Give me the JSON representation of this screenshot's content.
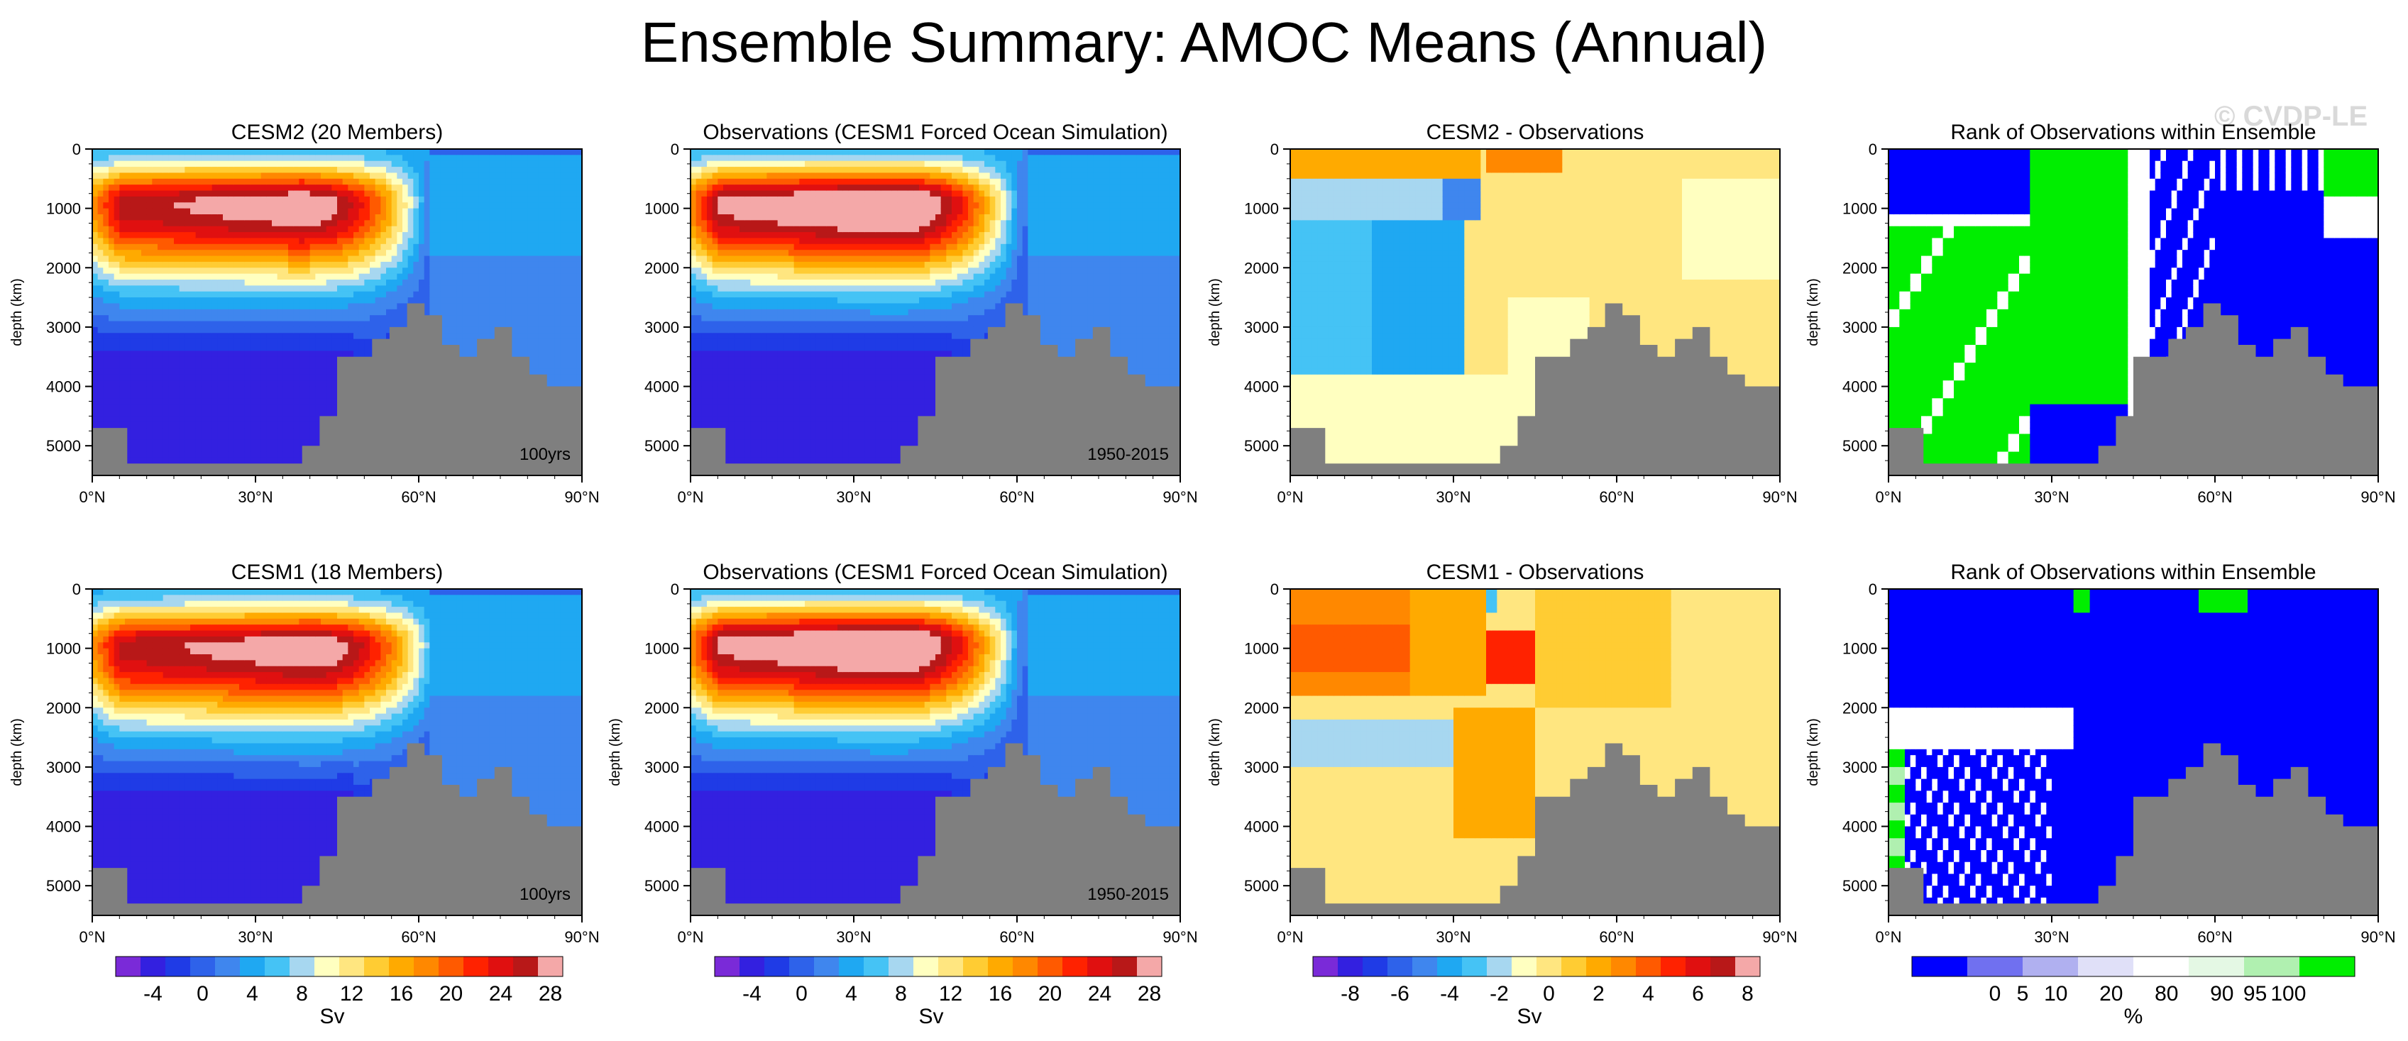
{
  "title": "Ensemble Summary: AMOC Means (Annual)",
  "watermark": "© CVDP-LE",
  "colors": {
    "bathymetry": "#7f7f7f",
    "amoc_scale": [
      "#7a2ad8",
      "#3320e0",
      "#1f3be6",
      "#2e62ea",
      "#3f86ee",
      "#1fa8f2",
      "#45c3f5",
      "#a7d7f0",
      "#ffffc0",
      "#ffe680",
      "#ffcc33",
      "#ffaa00",
      "#ff8800",
      "#ff5a00",
      "#ff2200",
      "#e01010",
      "#b81818",
      "#f4a8a8"
    ],
    "diff_scale": [
      "#7a2ad8",
      "#3320e0",
      "#1f3be6",
      "#2e62ea",
      "#3f86ee",
      "#1fa8f2",
      "#45c3f5",
      "#a7d7f0",
      "#ffffc0",
      "#ffe680",
      "#ffcc33",
      "#ffaa00",
      "#ff8800",
      "#ff5a00",
      "#ff2200",
      "#e01010",
      "#b81818",
      "#f4a8a8"
    ],
    "rank_scale": [
      "#0000ff",
      "#7070f0",
      "#b0b0f0",
      "#e0e0f8",
      "#ffffff",
      "#e4f8e4",
      "#b0f0b0",
      "#00ee00"
    ]
  },
  "chart_data": [
    {
      "type": "heatmap",
      "title": "CESM2 (20 Members)",
      "ylabel": "depth (km)",
      "xlabel": "",
      "x_ticks": [
        "0°N",
        "30°N",
        "60°N",
        "90°N"
      ],
      "y_ticks": [
        "0",
        "1000",
        "2000",
        "3000",
        "4000",
        "5000"
      ],
      "ylim": [
        0,
        5500
      ],
      "xlim": [
        0,
        90
      ],
      "annotation": "100yrs",
      "field": "amoc",
      "peak": {
        "lat": 38,
        "depth": 950,
        "value": 28
      },
      "bathymetry_depths": [
        4700,
        4700,
        5300,
        5300,
        5300,
        5300,
        5300,
        5300,
        5300,
        5300,
        5300,
        5300,
        5000,
        4500,
        3500,
        3500,
        3200,
        3000,
        2600,
        2800,
        3300,
        3500,
        3200,
        3000,
        3500,
        3800,
        4000,
        4000
      ]
    },
    {
      "type": "heatmap",
      "title": "Observations (CESM1 Forced Ocean Simulation)",
      "ylabel": "",
      "xlabel": "",
      "x_ticks": [
        "0°N",
        "30°N",
        "60°N",
        "90°N"
      ],
      "y_ticks": [
        "0",
        "1000",
        "2000",
        "3000",
        "4000",
        "5000"
      ],
      "ylim": [
        0,
        5500
      ],
      "xlim": [
        0,
        90
      ],
      "annotation": "1950-2015",
      "field": "amoc",
      "peak": {
        "lat": 37,
        "depth": 950,
        "value": 30
      },
      "bathymetry_depths": [
        4700,
        4700,
        5300,
        5300,
        5300,
        5300,
        5300,
        5300,
        5300,
        5300,
        5300,
        5300,
        5000,
        4500,
        3500,
        3500,
        3200,
        3000,
        2600,
        2800,
        3300,
        3500,
        3200,
        3000,
        3500,
        3800,
        4000,
        4000
      ]
    },
    {
      "type": "heatmap",
      "title": "CESM2 - Observations",
      "ylabel": "depth (km)",
      "xlabel": "",
      "x_ticks": [
        "0°N",
        "30°N",
        "60°N",
        "90°N"
      ],
      "y_ticks": [
        "0",
        "1000",
        "2000",
        "3000",
        "4000",
        "5000"
      ],
      "ylim": [
        0,
        5500
      ],
      "xlim": [
        0,
        90
      ],
      "annotation": "",
      "field": "diff_a",
      "bathymetry_depths": [
        4700,
        4700,
        5300,
        5300,
        5300,
        5300,
        5300,
        5300,
        5300,
        5300,
        5300,
        5300,
        5000,
        4500,
        3500,
        3500,
        3200,
        3000,
        2600,
        2800,
        3300,
        3500,
        3200,
        3000,
        3500,
        3800,
        4000,
        4000
      ]
    },
    {
      "type": "heatmap",
      "title": "Rank of Observations within Ensemble",
      "ylabel": "depth (km)",
      "xlabel": "",
      "x_ticks": [
        "0°N",
        "30°N",
        "60°N",
        "90°N"
      ],
      "y_ticks": [
        "0",
        "1000",
        "2000",
        "3000",
        "4000",
        "5000"
      ],
      "ylim": [
        0,
        5500
      ],
      "xlim": [
        0,
        90
      ],
      "annotation": "",
      "field": "rank_a",
      "bathymetry_depths": [
        4700,
        4700,
        5300,
        5300,
        5300,
        5300,
        5300,
        5300,
        5300,
        5300,
        5300,
        5300,
        5000,
        4500,
        3500,
        3500,
        3200,
        3000,
        2600,
        2800,
        3300,
        3500,
        3200,
        3000,
        3500,
        3800,
        4000,
        4000
      ]
    },
    {
      "type": "heatmap",
      "title": "CESM1 (18 Members)",
      "ylabel": "depth (km)",
      "xlabel": "",
      "x_ticks": [
        "0°N",
        "30°N",
        "60°N",
        "90°N"
      ],
      "y_ticks": [
        "0",
        "1000",
        "2000",
        "3000",
        "4000",
        "5000"
      ],
      "ylim": [
        0,
        5500
      ],
      "xlim": [
        0,
        90
      ],
      "annotation": "100yrs",
      "field": "amoc",
      "peak": {
        "lat": 40,
        "depth": 1000,
        "value": 28
      },
      "bathymetry_depths": [
        4700,
        4700,
        5300,
        5300,
        5300,
        5300,
        5300,
        5300,
        5300,
        5300,
        5300,
        5300,
        5000,
        4500,
        3500,
        3500,
        3200,
        3000,
        2600,
        2800,
        3300,
        3500,
        3200,
        3000,
        3500,
        3800,
        4000,
        4000
      ]
    },
    {
      "type": "heatmap",
      "title": "Observations (CESM1 Forced Ocean Simulation)",
      "ylabel": "depth (km)",
      "xlabel": "",
      "x_ticks": [
        "0°N",
        "30°N",
        "60°N",
        "90°N"
      ],
      "y_ticks": [
        "0",
        "1000",
        "2000",
        "3000",
        "4000",
        "5000"
      ],
      "ylim": [
        0,
        5500
      ],
      "xlim": [
        0,
        90
      ],
      "annotation": "1950-2015",
      "field": "amoc",
      "peak": {
        "lat": 37,
        "depth": 950,
        "value": 30
      },
      "bathymetry_depths": [
        4700,
        4700,
        5300,
        5300,
        5300,
        5300,
        5300,
        5300,
        5300,
        5300,
        5300,
        5300,
        5000,
        4500,
        3500,
        3500,
        3200,
        3000,
        2600,
        2800,
        3300,
        3500,
        3200,
        3000,
        3500,
        3800,
        4000,
        4000
      ]
    },
    {
      "type": "heatmap",
      "title": "CESM1 - Observations",
      "ylabel": "depth (km)",
      "xlabel": "",
      "x_ticks": [
        "0°N",
        "30°N",
        "60°N",
        "90°N"
      ],
      "y_ticks": [
        "0",
        "1000",
        "2000",
        "3000",
        "4000",
        "5000"
      ],
      "ylim": [
        0,
        5500
      ],
      "xlim": [
        0,
        90
      ],
      "annotation": "",
      "field": "diff_b",
      "bathymetry_depths": [
        4700,
        4700,
        5300,
        5300,
        5300,
        5300,
        5300,
        5300,
        5300,
        5300,
        5300,
        5300,
        5000,
        4500,
        3500,
        3500,
        3200,
        3000,
        2600,
        2800,
        3300,
        3500,
        3200,
        3000,
        3500,
        3800,
        4000,
        4000
      ]
    },
    {
      "type": "heatmap",
      "title": "Rank of Observations within Ensemble",
      "ylabel": "depth (km)",
      "xlabel": "",
      "x_ticks": [
        "0°N",
        "30°N",
        "60°N",
        "90°N"
      ],
      "y_ticks": [
        "0",
        "1000",
        "2000",
        "3000",
        "4000",
        "5000"
      ],
      "ylim": [
        0,
        5500
      ],
      "xlim": [
        0,
        90
      ],
      "annotation": "",
      "field": "rank_b",
      "bathymetry_depths": [
        4700,
        4700,
        5300,
        5300,
        5300,
        5300,
        5300,
        5300,
        5300,
        5300,
        5300,
        5300,
        5000,
        4500,
        3500,
        3500,
        3200,
        3000,
        2600,
        2800,
        3300,
        3500,
        3200,
        3000,
        3500,
        3800,
        4000,
        4000
      ]
    }
  ],
  "colorbars": [
    {
      "name": "amoc-colorbar-1",
      "unit": "Sv",
      "labels": [
        "-4",
        "0",
        "4",
        "8",
        "12",
        "16",
        "20",
        "24",
        "28"
      ],
      "scale": "amoc_scale"
    },
    {
      "name": "amoc-colorbar-2",
      "unit": "Sv",
      "labels": [
        "-4",
        "0",
        "4",
        "8",
        "12",
        "16",
        "20",
        "24",
        "28"
      ],
      "scale": "amoc_scale"
    },
    {
      "name": "diff-colorbar",
      "unit": "Sv",
      "labels": [
        "-8",
        "-6",
        "-4",
        "-2",
        "0",
        "2",
        "4",
        "6",
        "8"
      ],
      "scale": "diff_scale"
    },
    {
      "name": "rank-colorbar",
      "unit": "%",
      "labels": [
        "0",
        "5",
        "10",
        "20",
        "80",
        "90",
        "95",
        "100"
      ],
      "scale": "rank_scale"
    }
  ]
}
